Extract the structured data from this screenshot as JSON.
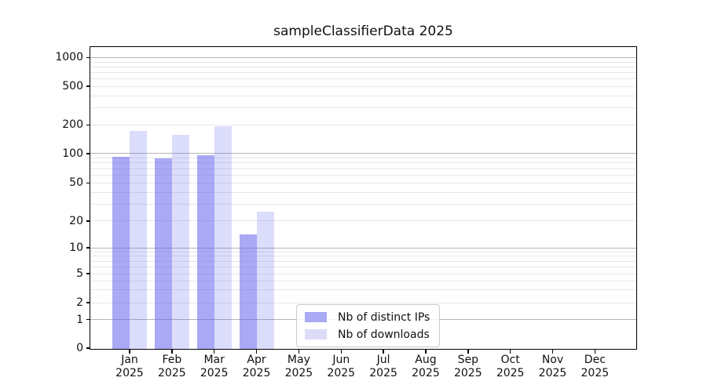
{
  "title": "sampleClassifierData 2025",
  "chart_data": {
    "type": "bar",
    "title": "sampleClassifierData 2025",
    "categories": [
      "Jan",
      "Feb",
      "Mar",
      "Apr",
      "May",
      "Jun",
      "Jul",
      "Aug",
      "Sep",
      "Oct",
      "Nov",
      "Dec"
    ],
    "category_year": "2025",
    "series": [
      {
        "name": "Nb of distinct IPs",
        "color": "#a9a9f4",
        "fill": "rgba(102,102,238,0.56)",
        "values": [
          93,
          90,
          96,
          14,
          null,
          null,
          null,
          null,
          null,
          null,
          null,
          null
        ]
      },
      {
        "name": "Nb of downloads",
        "color": "#dcdcf8",
        "fill": "rgba(102,102,238,0.23)",
        "values": [
          173,
          157,
          194,
          25,
          null,
          null,
          null,
          null,
          null,
          null,
          null,
          null
        ]
      }
    ],
    "y_ticks": [
      0,
      1,
      2,
      5,
      10,
      20,
      50,
      100,
      200,
      500,
      1000
    ],
    "y_major_ticks": [
      1,
      10,
      100,
      1000
    ],
    "yscale": "symlog",
    "ylim": [
      0,
      1290
    ],
    "xlabel": "",
    "ylabel": "",
    "grid": "major+minor horizontal",
    "legend_position": "inside lower center"
  },
  "colors": {
    "bar_distinct_ips": "#a9a9f4",
    "bar_downloads": "#dcdcf8",
    "grid_major": "#b4b4b4",
    "grid_minor": "#e7e7e7",
    "spine": "#000000",
    "background": "#ffffff"
  }
}
